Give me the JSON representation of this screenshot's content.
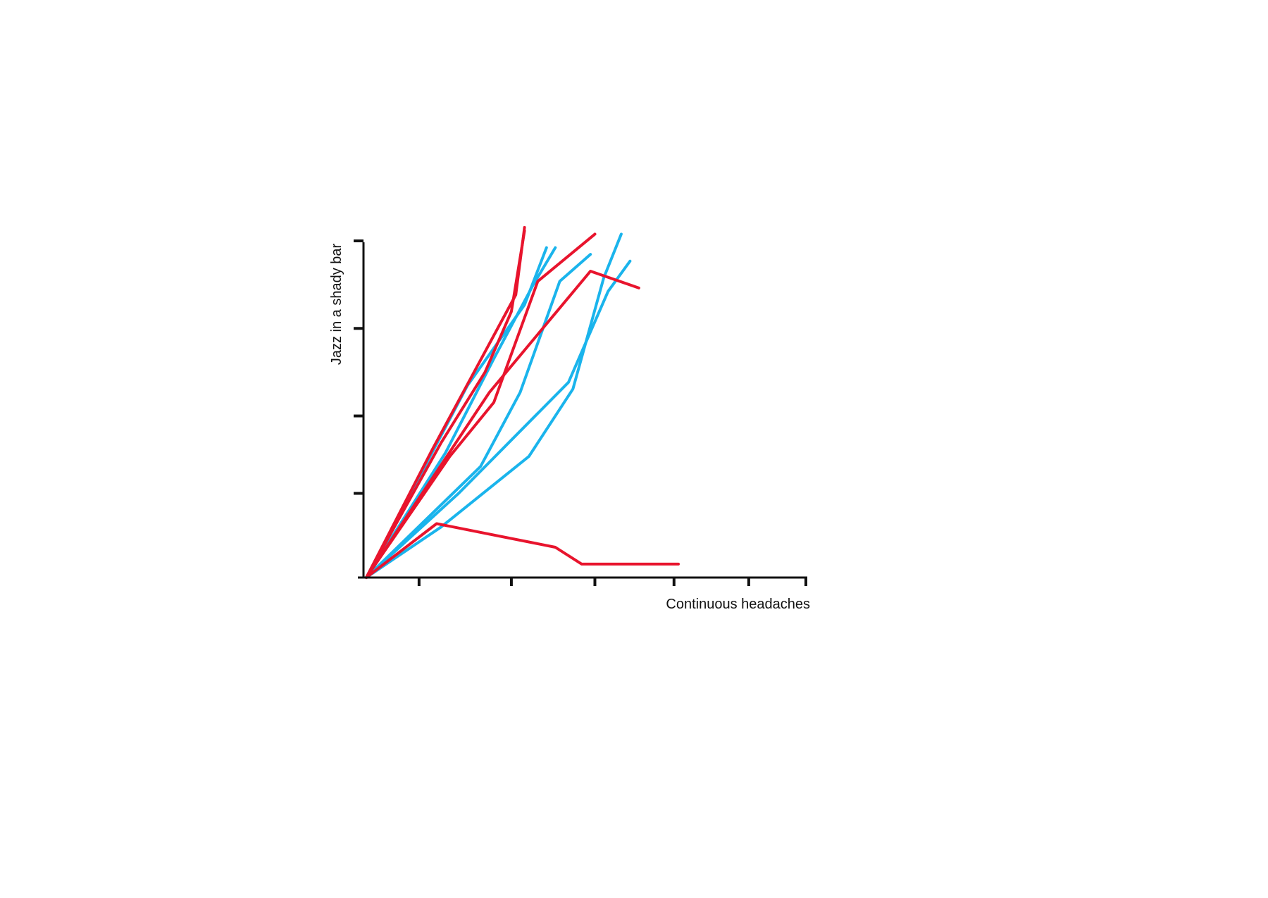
{
  "chart_data": {
    "type": "line",
    "title": "",
    "xlabel": "Continuous headaches",
    "ylabel": "Jazz in a shady bar",
    "xlim": [
      0,
      100
    ],
    "ylim": [
      0,
      100
    ],
    "x_ticks": [
      12,
      33,
      52,
      70,
      87,
      100
    ],
    "y_ticks": [
      25,
      48,
      74,
      100
    ],
    "grid": false,
    "legend": "none",
    "colors": {
      "blue": "#1ab4ec",
      "red": "#e8142d",
      "axis": "#111111"
    },
    "series": [
      {
        "color": "blue",
        "points": [
          [
            0,
            0
          ],
          [
            23,
            57
          ],
          [
            36,
            81
          ],
          [
            41,
            98
          ]
        ]
      },
      {
        "color": "blue",
        "points": [
          [
            0,
            0
          ],
          [
            18,
            37
          ],
          [
            29,
            65
          ],
          [
            38,
            87
          ],
          [
            43,
            98
          ]
        ]
      },
      {
        "color": "blue",
        "points": [
          [
            0,
            0
          ],
          [
            26,
            33
          ],
          [
            35,
            55
          ],
          [
            44,
            88
          ],
          [
            51,
            96
          ]
        ]
      },
      {
        "color": "blue",
        "points": [
          [
            0,
            0
          ],
          [
            17,
            15
          ],
          [
            37,
            36
          ],
          [
            47,
            56
          ],
          [
            54,
            89
          ],
          [
            58,
            102
          ]
        ]
      },
      {
        "color": "blue",
        "points": [
          [
            0,
            0
          ],
          [
            21,
            25
          ],
          [
            46,
            58
          ],
          [
            55,
            85
          ],
          [
            60,
            94
          ]
        ]
      },
      {
        "color": "red",
        "points": [
          [
            0,
            0
          ],
          [
            17,
            40
          ],
          [
            27,
            61
          ],
          [
            33,
            79
          ],
          [
            36,
            103
          ]
        ]
      },
      {
        "color": "red",
        "points": [
          [
            0,
            0
          ],
          [
            19,
            36
          ],
          [
            29,
            52
          ],
          [
            39,
            88
          ],
          [
            52,
            102
          ]
        ]
      },
      {
        "color": "red",
        "points": [
          [
            0,
            0
          ],
          [
            15,
            38
          ],
          [
            34,
            84
          ],
          [
            36,
            104
          ]
        ]
      },
      {
        "color": "red",
        "points": [
          [
            0,
            0
          ],
          [
            28,
            55
          ],
          [
            51,
            91
          ],
          [
            62,
            86
          ]
        ]
      },
      {
        "color": "red",
        "points": [
          [
            0,
            0
          ],
          [
            16,
            16
          ],
          [
            43,
            9
          ],
          [
            49,
            4
          ],
          [
            71,
            4
          ]
        ]
      }
    ]
  }
}
